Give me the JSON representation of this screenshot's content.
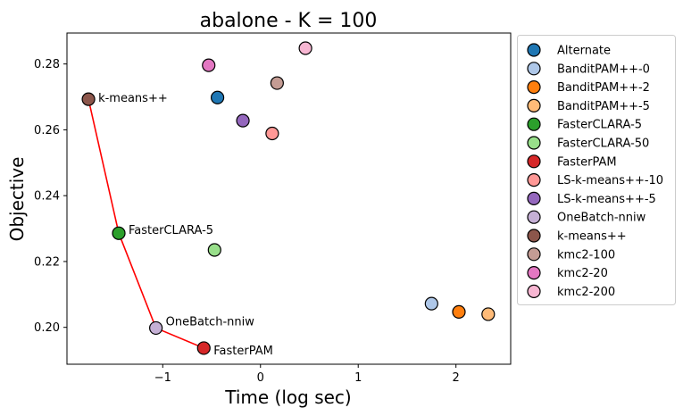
{
  "chart_data": {
    "type": "scatter",
    "title": "abalone - K = 100",
    "xlabel": "Time (log sec)",
    "ylabel": "Objective",
    "xlim": [
      -1.98,
      2.56
    ],
    "ylim": [
      0.1888,
      0.2894
    ],
    "xticks": [
      -1,
      0,
      1,
      2
    ],
    "xtick_labels": [
      "−1",
      "0",
      "1",
      "2"
    ],
    "yticks": [
      0.2,
      0.22,
      0.24,
      0.26,
      0.28
    ],
    "ytick_labels": [
      "0.20",
      "0.22",
      "0.24",
      "0.26",
      "0.28"
    ],
    "legend_position": "outside-right",
    "series": [
      {
        "name": "Alternate",
        "color": "#1f77b4",
        "x": -0.44,
        "y": 0.2698
      },
      {
        "name": "BanditPAM++-0",
        "color": "#aec7e8",
        "x": 1.75,
        "y": 0.2072
      },
      {
        "name": "BanditPAM++-2",
        "color": "#ff7f0e",
        "x": 2.03,
        "y": 0.2047
      },
      {
        "name": "BanditPAM++-5",
        "color": "#ffbb78",
        "x": 2.33,
        "y": 0.204
      },
      {
        "name": "FasterCLARA-5",
        "color": "#2ca02c",
        "x": -1.45,
        "y": 0.2286
      },
      {
        "name": "FasterCLARA-50",
        "color": "#98df8a",
        "x": -0.47,
        "y": 0.2235
      },
      {
        "name": "FasterPAM",
        "color": "#d62728",
        "x": -0.58,
        "y": 0.1937
      },
      {
        "name": "LS-k-means++-10",
        "color": "#ff9896",
        "x": 0.12,
        "y": 0.2589
      },
      {
        "name": "LS-k-means++-5",
        "color": "#9467bd",
        "x": -0.18,
        "y": 0.2628
      },
      {
        "name": "OneBatch-nniw",
        "color": "#c5b0d5",
        "x": -1.07,
        "y": 0.1998
      },
      {
        "name": "k-means++",
        "color": "#8c564b",
        "x": -1.76,
        "y": 0.2693
      },
      {
        "name": "kmc2-100",
        "color": "#c49c94",
        "x": 0.17,
        "y": 0.2742
      },
      {
        "name": "kmc2-20",
        "color": "#e377c2",
        "x": -0.53,
        "y": 0.2796
      },
      {
        "name": "kmc2-200",
        "color": "#f7b6d2",
        "x": 0.46,
        "y": 0.2848
      }
    ],
    "pareto_front": {
      "color": "#ff0000",
      "points": [
        {
          "name": "k-means++",
          "x": -1.76,
          "y": 0.2693
        },
        {
          "name": "FasterCLARA-5",
          "x": -1.45,
          "y": 0.2286
        },
        {
          "name": "OneBatch-nniw",
          "x": -1.07,
          "y": 0.1998
        },
        {
          "name": "FasterPAM",
          "x": -0.58,
          "y": 0.1937
        }
      ]
    },
    "annotations": [
      {
        "text": "k-means++",
        "x": -1.76,
        "y": 0.2693
      },
      {
        "text": "FasterCLARA-5",
        "x": -1.45,
        "y": 0.2286
      },
      {
        "text": "OneBatch-nniw",
        "x": -1.07,
        "y": 0.1998
      },
      {
        "text": "FasterPAM",
        "x": -0.58,
        "y": 0.1937
      }
    ]
  }
}
